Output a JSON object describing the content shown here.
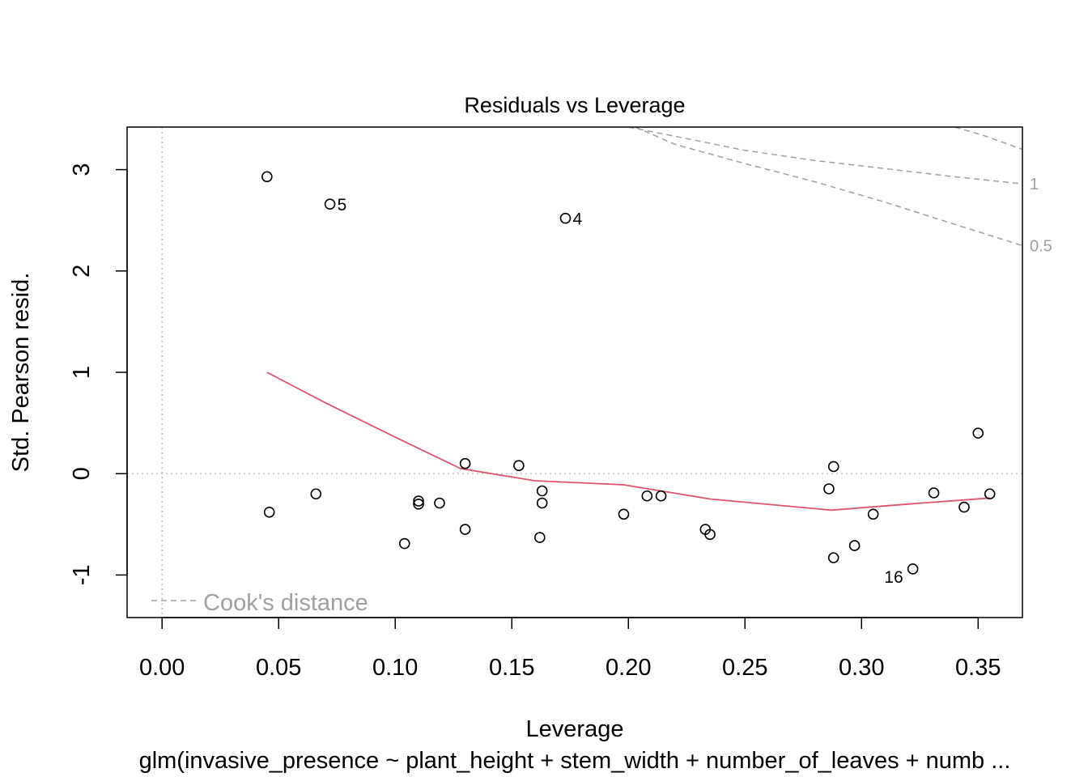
{
  "chart_data": {
    "type": "scatter",
    "title": "Residuals vs Leverage",
    "xlabel": "Leverage",
    "ylabel": "Std. Pearson resid.",
    "subtitle": "glm(invasive_presence ~ plant_height + stem_width + number_of_leaves + numb ...",
    "xlim": [
      -0.015,
      0.369
    ],
    "ylim": [
      -1.42,
      3.42
    ],
    "x_ticks": [
      0.0,
      0.05,
      0.1,
      0.15,
      0.2,
      0.25,
      0.3,
      0.35
    ],
    "x_tick_labels": [
      "0.00",
      "0.05",
      "0.10",
      "0.15",
      "0.20",
      "0.25",
      "0.30",
      "0.35"
    ],
    "y_ticks": [
      -1,
      0,
      1,
      2,
      3
    ],
    "y_tick_labels": [
      "-1",
      "0",
      "1",
      "2",
      "3"
    ],
    "reference_lines": {
      "h": 0,
      "v": 0
    },
    "points": [
      {
        "x": 0.045,
        "y": 2.93,
        "label": ""
      },
      {
        "x": 0.072,
        "y": 2.66,
        "label": "5"
      },
      {
        "x": 0.173,
        "y": 2.52,
        "label": "4"
      },
      {
        "x": 0.046,
        "y": -0.38,
        "label": ""
      },
      {
        "x": 0.066,
        "y": -0.2,
        "label": ""
      },
      {
        "x": 0.104,
        "y": -0.69,
        "label": ""
      },
      {
        "x": 0.11,
        "y": -0.27,
        "label": ""
      },
      {
        "x": 0.11,
        "y": -0.3,
        "label": ""
      },
      {
        "x": 0.119,
        "y": -0.29,
        "label": ""
      },
      {
        "x": 0.13,
        "y": 0.1,
        "label": ""
      },
      {
        "x": 0.13,
        "y": -0.55,
        "label": ""
      },
      {
        "x": 0.153,
        "y": 0.08,
        "label": ""
      },
      {
        "x": 0.162,
        "y": -0.63,
        "label": ""
      },
      {
        "x": 0.163,
        "y": -0.17,
        "label": ""
      },
      {
        "x": 0.163,
        "y": -0.29,
        "label": ""
      },
      {
        "x": 0.198,
        "y": -0.4,
        "label": ""
      },
      {
        "x": 0.208,
        "y": -0.22,
        "label": ""
      },
      {
        "x": 0.214,
        "y": -0.22,
        "label": ""
      },
      {
        "x": 0.233,
        "y": -0.55,
        "label": ""
      },
      {
        "x": 0.235,
        "y": -0.6,
        "label": ""
      },
      {
        "x": 0.286,
        "y": -0.15,
        "label": ""
      },
      {
        "x": 0.288,
        "y": 0.07,
        "label": ""
      },
      {
        "x": 0.288,
        "y": -0.83,
        "label": ""
      },
      {
        "x": 0.297,
        "y": -0.71,
        "label": ""
      },
      {
        "x": 0.305,
        "y": -0.4,
        "label": ""
      },
      {
        "x": 0.322,
        "y": -0.94,
        "label": "16"
      },
      {
        "x": 0.331,
        "y": -0.19,
        "label": ""
      },
      {
        "x": 0.344,
        "y": -0.33,
        "label": ""
      },
      {
        "x": 0.35,
        "y": 0.4,
        "label": ""
      },
      {
        "x": 0.355,
        "y": -0.2,
        "label": ""
      }
    ],
    "smoother": {
      "color": "#DF536B",
      "x": [
        0.045,
        0.07,
        0.1,
        0.128,
        0.16,
        0.198,
        0.235,
        0.287,
        0.32,
        0.355
      ],
      "y": [
        1.0,
        0.7,
        0.36,
        0.05,
        -0.07,
        -0.11,
        -0.25,
        -0.36,
        -0.3,
        -0.24
      ]
    },
    "cooks_contours": [
      {
        "level": "1",
        "x": [
          0.2,
          0.22,
          0.25,
          0.28,
          0.31,
          0.34,
          0.369
        ],
        "y": [
          3.55,
          3.33,
          3.19,
          3.09,
          3.01,
          2.93,
          2.86
        ],
        "x2": [
          0.34,
          0.352,
          0.369
        ],
        "y2": [
          3.44,
          3.34,
          3.2
        ]
      },
      {
        "level": "0.5",
        "x": [
          0.203,
          0.22,
          0.25,
          0.28,
          0.31,
          0.34,
          0.369
        ],
        "y": [
          3.42,
          3.25,
          3.06,
          2.88,
          2.68,
          2.46,
          2.25
        ]
      }
    ],
    "legend": {
      "label": "Cook's distance",
      "position": "bottom-left"
    },
    "colors": {
      "points": "#000000",
      "smoother": "#DF536B",
      "contours": "#A0A0A0",
      "reference": "#BEBEBE"
    }
  }
}
